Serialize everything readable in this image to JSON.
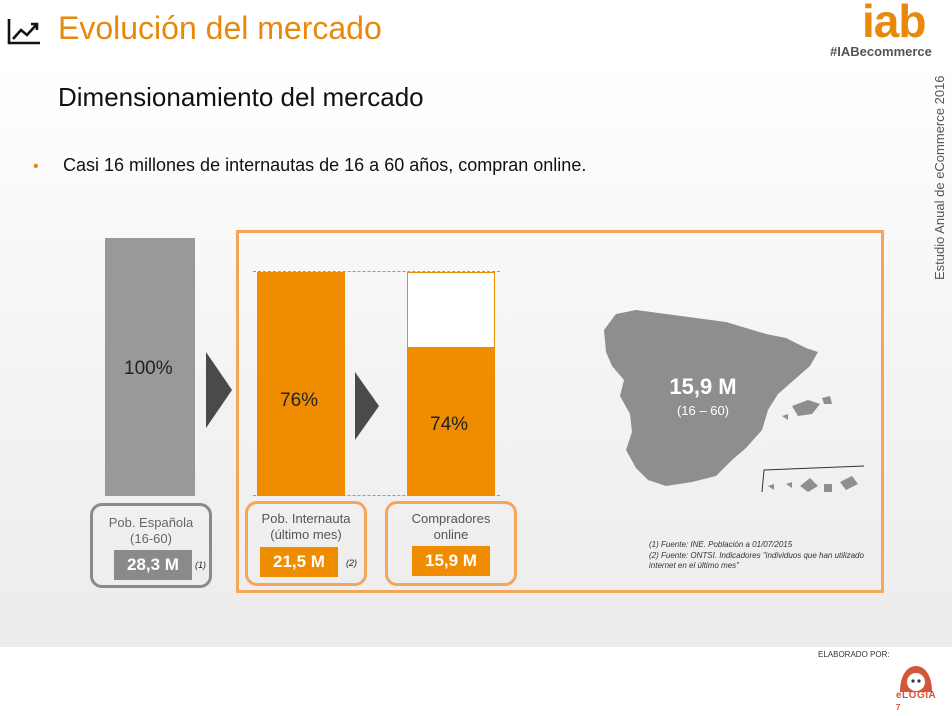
{
  "header": {
    "title": "Evolución del mercado",
    "logo_text": "iab",
    "hashtag": "#IABecommerce",
    "side_text": "Estudio Anual de eCommerce 2016"
  },
  "slide": {
    "subtitle": "Dimensionamiento del mercado",
    "bullet": "Casi 16 millones de internautas de 16 a 60 años, compran online."
  },
  "bars": [
    {
      "percent_label": "100%",
      "value": 100,
      "label_lines": [
        "Pob. Española",
        "(16-60)"
      ],
      "figure": "28,3 M",
      "note": "(1)",
      "color": "#999999"
    },
    {
      "percent_label": "76%",
      "value": 76,
      "label_lines": [
        "Pob. Internauta",
        "(último mes)"
      ],
      "figure": "21,5 M",
      "note": "(2)",
      "color": "#F08C00"
    },
    {
      "percent_label": "74%",
      "value": 74,
      "label_lines": [
        "Compradores",
        "online"
      ],
      "figure": "15,9 M",
      "note": "",
      "color": "#F08C00"
    }
  ],
  "map": {
    "value": "15,9 M",
    "range": "(16 – 60)"
  },
  "footnotes": {
    "f1": "(1) Fuente: INE. Población a 01/07/2015",
    "f2": "(2) Fuente: ONTSI. Indicadores \"individuos que han utilizado internet en el último mes\""
  },
  "footer": {
    "elaborado": "ELABORADO POR:",
    "brand": "eLOGIA",
    "page": "7"
  },
  "colors": {
    "accent": "#E8890C",
    "bar_orange": "#F08C00",
    "bar_gray": "#999999",
    "frame": "#F4A65A"
  }
}
